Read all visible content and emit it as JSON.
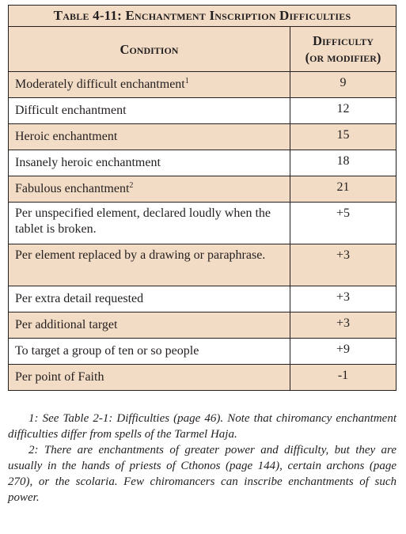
{
  "table": {
    "title": "Table 4-11: Enchantment Inscription Difficulties",
    "headers": {
      "condition": "Condition",
      "difficulty_line1": "Difficulty",
      "difficulty_line2": "(or modifier)"
    },
    "rows": [
      {
        "condition": "Moderately difficult enchantment",
        "footnote": "1",
        "value": "9"
      },
      {
        "condition": "Difficult enchantment",
        "footnote": "",
        "value": "12"
      },
      {
        "condition": "Heroic enchantment",
        "footnote": "",
        "value": "15"
      },
      {
        "condition": "Insanely heroic enchantment",
        "footnote": "",
        "value": "18"
      },
      {
        "condition": "Fabulous enchantment",
        "footnote": "2",
        "value": "21"
      },
      {
        "condition": "Per unspecified element, declared loudly when the tablet is broken.",
        "footnote": "",
        "value": "+5"
      },
      {
        "condition": "Per element replaced by a drawing or paraphrase.",
        "footnote": "",
        "value": "+3"
      },
      {
        "condition": "Per extra detail requested",
        "footnote": "",
        "value": "+3"
      },
      {
        "condition": "Per additional target",
        "footnote": "",
        "value": "+3"
      },
      {
        "condition": "To target a group of ten or so people",
        "footnote": "",
        "value": "+9"
      },
      {
        "condition": "Per point of Faith",
        "footnote": "",
        "value": "-1"
      }
    ]
  },
  "notes": [
    "1: See Table 2-1: Difficulties (page 46). Note that chiromancy enchantment difficulties differ from spells of the Tarmel Haja.",
    "2: There are enchantments of greater power and difficulty, but they are usually in the hands of priests of Cthonos (page 144), certain archons (page 270), or the scolaria. Few chiromancers can inscribe enchantments of such power."
  ]
}
